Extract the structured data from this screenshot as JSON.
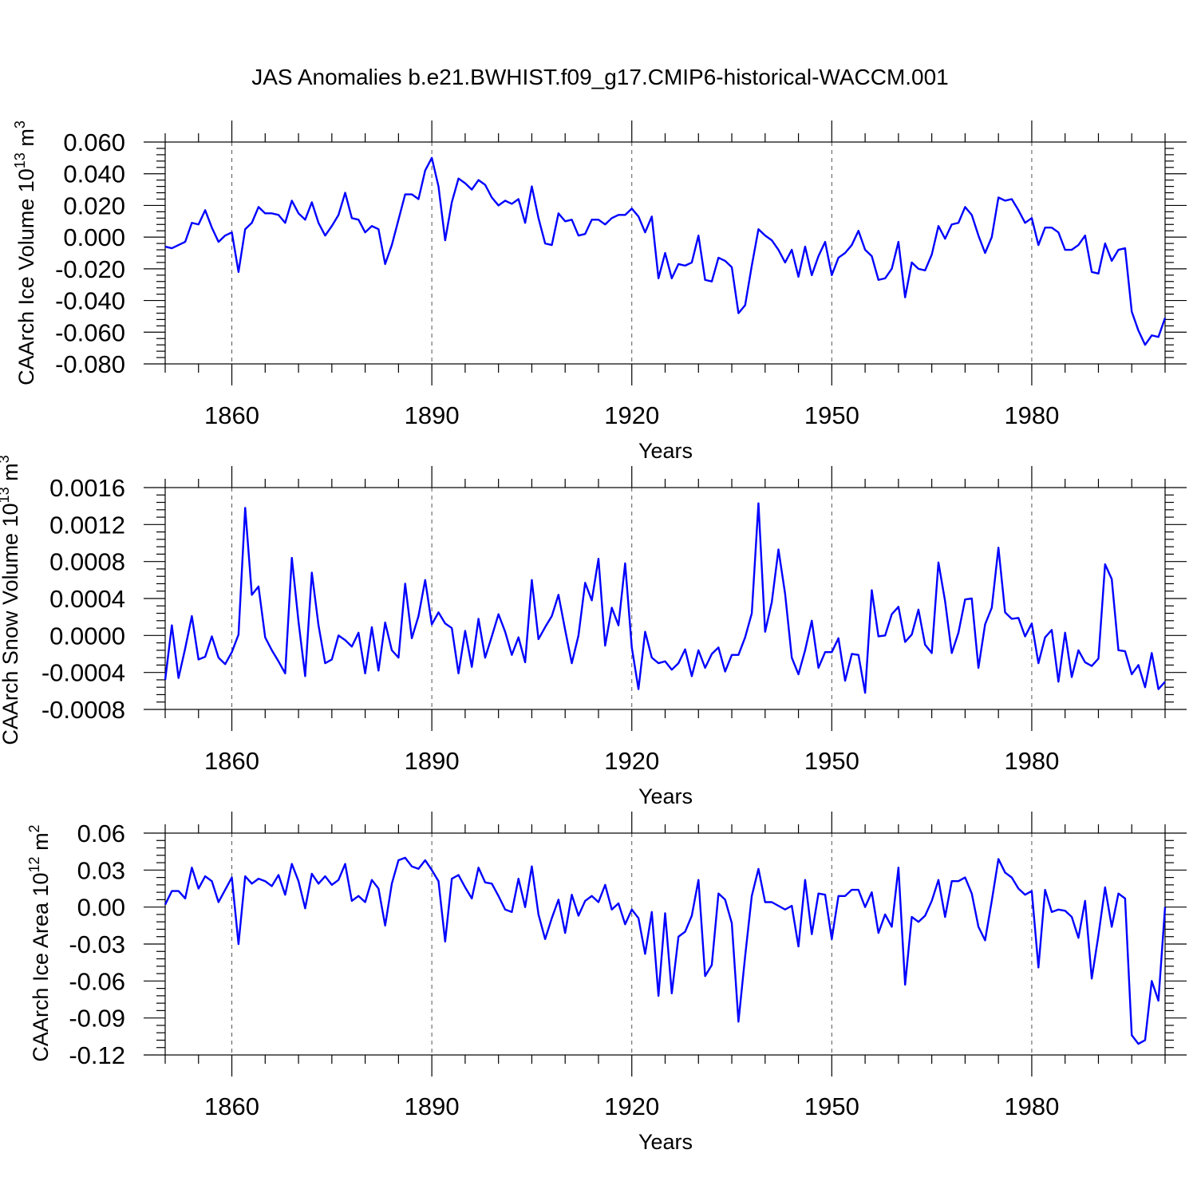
{
  "title": "JAS Anomalies b.e21.BWHIST.f09_g17.CMIP6-historical-WACCM.001",
  "colors": {
    "line": "#0000ff",
    "axis": "#000000",
    "grid": "#555555"
  },
  "chart_data": [
    {
      "type": "line",
      "name": "ice-volume",
      "ylabel_main": "CAArch Ice Volume 10",
      "ylabel_exp": "13",
      "ylabel_unit": "m",
      "ylabel_unit_exp": "3",
      "xlabel": "Years",
      "xlim": [
        1850,
        2000
      ],
      "ylim": [
        -0.08,
        0.06
      ],
      "x_ticks": [
        1860,
        1890,
        1920,
        1950,
        1980
      ],
      "x_tick_labels": [
        "1860",
        "1890",
        "1920",
        "1950",
        "1980"
      ],
      "y_ticks": [
        0.06,
        0.04,
        0.02,
        0.0,
        -0.02,
        -0.04,
        -0.06,
        -0.08
      ],
      "y_tick_labels": [
        "0.060",
        "0.040",
        "0.020",
        "0.000",
        "-0.020",
        "-0.040",
        "-0.060",
        "-0.080"
      ],
      "grid": "x-dashed",
      "x_start": 1850,
      "values": [
        -0.006,
        -0.007,
        -0.005,
        -0.003,
        0.009,
        0.008,
        0.017,
        0.006,
        -0.003,
        0.001,
        0.003,
        -0.022,
        0.005,
        0.009,
        0.019,
        0.015,
        0.015,
        0.014,
        0.009,
        0.023,
        0.015,
        0.011,
        0.022,
        0.009,
        0.001,
        0.007,
        0.014,
        0.028,
        0.012,
        0.011,
        0.003,
        0.007,
        0.005,
        -0.017,
        -0.005,
        0.011,
        0.027,
        0.027,
        0.024,
        0.042,
        0.05,
        0.032,
        -0.002,
        0.022,
        0.037,
        0.034,
        0.03,
        0.036,
        0.033,
        0.025,
        0.02,
        0.023,
        0.021,
        0.024,
        0.009,
        0.032,
        0.012,
        -0.004,
        -0.005,
        0.015,
        0.01,
        0.011,
        0.001,
        0.002,
        0.011,
        0.011,
        0.008,
        0.012,
        0.014,
        0.014,
        0.018,
        0.013,
        0.003,
        0.013,
        -0.026,
        -0.01,
        -0.026,
        -0.017,
        -0.018,
        -0.016,
        0.001,
        -0.027,
        -0.028,
        -0.013,
        -0.015,
        -0.019,
        -0.048,
        -0.043,
        -0.018,
        0.005,
        0.001,
        -0.002,
        -0.008,
        -0.016,
        -0.008,
        -0.025,
        -0.006,
        -0.024,
        -0.012,
        -0.003,
        -0.024,
        -0.013,
        -0.01,
        -0.005,
        0.004,
        -0.008,
        -0.012,
        -0.027,
        -0.026,
        -0.02,
        -0.003,
        -0.038,
        -0.016,
        -0.02,
        -0.021,
        -0.011,
        0.007,
        -0.001,
        0.008,
        0.009,
        0.019,
        0.014,
        0.001,
        -0.01,
        0.0,
        0.025,
        0.023,
        0.024,
        0.017,
        0.009,
        0.012,
        -0.005,
        0.006,
        0.006,
        0.003,
        -0.008,
        -0.008,
        -0.005,
        0.001,
        -0.022,
        -0.023,
        -0.004,
        -0.015,
        -0.008,
        -0.007,
        -0.047,
        -0.059,
        -0.068,
        -0.062,
        -0.063,
        -0.051
      ]
    },
    {
      "type": "line",
      "name": "snow-volume",
      "ylabel_main": "CAArch Snow Volume 10",
      "ylabel_exp": "13",
      "ylabel_unit": "m",
      "ylabel_unit_exp": "3",
      "xlabel": "Years",
      "xlim": [
        1850,
        2000
      ],
      "ylim": [
        -0.0008,
        0.0016
      ],
      "x_ticks": [
        1860,
        1890,
        1920,
        1950,
        1980
      ],
      "x_tick_labels": [
        "1860",
        "1890",
        "1920",
        "1950",
        "1980"
      ],
      "y_ticks": [
        0.0016,
        0.0012,
        0.0008,
        0.0004,
        0.0,
        -0.0004,
        -0.0008
      ],
      "y_tick_labels": [
        "0.0016",
        "0.0012",
        "0.0008",
        "0.0004",
        "0.0000",
        "-0.0004",
        "-0.0008"
      ],
      "grid": "x-dashed",
      "x_start": 1850,
      "values": [
        -0.00048,
        0.00011,
        -0.00046,
        -0.00014,
        0.00021,
        -0.00026,
        -0.00023,
        -1e-05,
        -0.00024,
        -0.00031,
        -0.00018,
        1e-05,
        0.00138,
        0.00044,
        0.00053,
        -2e-05,
        -0.00016,
        -0.00028,
        -0.00041,
        0.00084,
        0.00015,
        -0.00044,
        0.00068,
        0.00011,
        -0.0003,
        -0.00026,
        0.0,
        -5e-05,
        -0.00012,
        3e-05,
        -0.00041,
        9e-05,
        -0.00038,
        0.00014,
        -0.00016,
        -0.00024,
        0.00056,
        -3e-05,
        0.00021,
        0.0006,
        0.00012,
        0.00025,
        0.00013,
        8e-05,
        -0.00041,
        5e-05,
        -0.00034,
        0.00018,
        -0.00024,
        -1e-05,
        0.00023,
        4e-05,
        -0.00021,
        -2e-05,
        -0.00029,
        0.0006,
        -4e-05,
        9e-05,
        0.00021,
        0.00044,
        6e-05,
        -0.0003,
        0.0,
        0.00057,
        0.00038,
        0.00083,
        -0.00011,
        0.0003,
        0.00011,
        0.00078,
        -0.00013,
        -0.00058,
        4e-05,
        -0.00024,
        -0.0003,
        -0.00028,
        -0.00037,
        -0.0003,
        -0.00015,
        -0.00044,
        -0.00016,
        -0.00035,
        -0.0002,
        -0.00013,
        -0.00039,
        -0.00021,
        -0.00021,
        -2e-05,
        0.00024,
        0.00143,
        4e-05,
        0.00036,
        0.00093,
        0.00045,
        -0.00024,
        -0.00042,
        -0.00016,
        0.00016,
        -0.00035,
        -0.00018,
        -0.00018,
        -3e-05,
        -0.00049,
        -0.0002,
        -0.00021,
        -0.00062,
        0.00049,
        -1e-05,
        0.0,
        0.00023,
        0.00031,
        -7e-05,
        1e-05,
        0.00028,
        -0.0001,
        -0.00019,
        0.00079,
        0.00037,
        -0.00019,
        3e-05,
        0.00039,
        0.0004,
        -0.00035,
        0.00012,
        0.0003,
        0.00095,
        0.00025,
        0.00018,
        0.00019,
        -1e-05,
        0.00013,
        -0.0003,
        -2e-05,
        6e-05,
        -0.0005,
        3e-05,
        -0.00045,
        -0.00016,
        -0.00029,
        -0.00033,
        -0.00025,
        0.00077,
        0.00061,
        -0.00016,
        -0.00017,
        -0.00042,
        -0.00032,
        -0.00056,
        -0.00019,
        -0.00058,
        -0.0005
      ]
    },
    {
      "type": "line",
      "name": "ice-area",
      "ylabel_main": "CAArch Ice Area 10",
      "ylabel_exp": "12",
      "ylabel_unit": "m",
      "ylabel_unit_exp": "2",
      "xlabel": "Years",
      "xlim": [
        1850,
        2000
      ],
      "ylim": [
        -0.12,
        0.06
      ],
      "x_ticks": [
        1860,
        1890,
        1920,
        1950,
        1980
      ],
      "x_tick_labels": [
        "1860",
        "1890",
        "1920",
        "1950",
        "1980"
      ],
      "y_ticks": [
        0.06,
        0.03,
        0.0,
        -0.03,
        -0.06,
        -0.09,
        -0.12
      ],
      "y_tick_labels": [
        "0.06",
        "0.03",
        "0.00",
        "-0.03",
        "-0.06",
        "-0.09",
        "-0.12"
      ],
      "grid": "x-dashed",
      "x_start": 1850,
      "values": [
        0.002,
        0.013,
        0.013,
        0.007,
        0.032,
        0.015,
        0.025,
        0.021,
        0.004,
        0.014,
        0.024,
        -0.03,
        0.025,
        0.019,
        0.023,
        0.021,
        0.017,
        0.026,
        0.01,
        0.035,
        0.021,
        -0.001,
        0.027,
        0.019,
        0.025,
        0.018,
        0.022,
        0.035,
        0.005,
        0.009,
        0.004,
        0.022,
        0.015,
        -0.015,
        0.019,
        0.038,
        0.04,
        0.033,
        0.031,
        0.038,
        0.03,
        0.021,
        -0.028,
        0.023,
        0.026,
        0.016,
        0.007,
        0.032,
        0.02,
        0.019,
        0.009,
        -0.002,
        -0.004,
        0.023,
        0.0,
        0.033,
        -0.006,
        -0.026,
        -0.009,
        0.006,
        -0.021,
        0.01,
        -0.007,
        0.005,
        0.009,
        0.004,
        0.018,
        -0.002,
        0.003,
        -0.014,
        -0.002,
        -0.009,
        -0.038,
        -0.004,
        -0.072,
        -0.005,
        -0.07,
        -0.024,
        -0.02,
        -0.007,
        0.022,
        -0.056,
        -0.047,
        0.011,
        0.006,
        -0.013,
        -0.093,
        -0.04,
        0.009,
        0.031,
        0.004,
        0.004,
        0.001,
        -0.002,
        0.001,
        -0.032,
        0.022,
        -0.022,
        0.011,
        0.01,
        -0.026,
        0.009,
        0.009,
        0.014,
        0.014,
        0.0,
        0.012,
        -0.021,
        -0.006,
        -0.016,
        0.032,
        -0.063,
        -0.008,
        -0.012,
        -0.007,
        0.005,
        0.022,
        -0.008,
        0.021,
        0.021,
        0.024,
        0.011,
        -0.016,
        -0.027,
        0.005,
        0.039,
        0.028,
        0.024,
        0.015,
        0.01,
        0.013,
        -0.049,
        0.014,
        -0.004,
        -0.002,
        -0.003,
        -0.008,
        -0.025,
        0.005,
        -0.058,
        -0.023,
        0.016,
        -0.016,
        0.011,
        0.007,
        -0.104,
        -0.111,
        -0.108,
        -0.06,
        -0.076,
        0.0
      ]
    }
  ]
}
